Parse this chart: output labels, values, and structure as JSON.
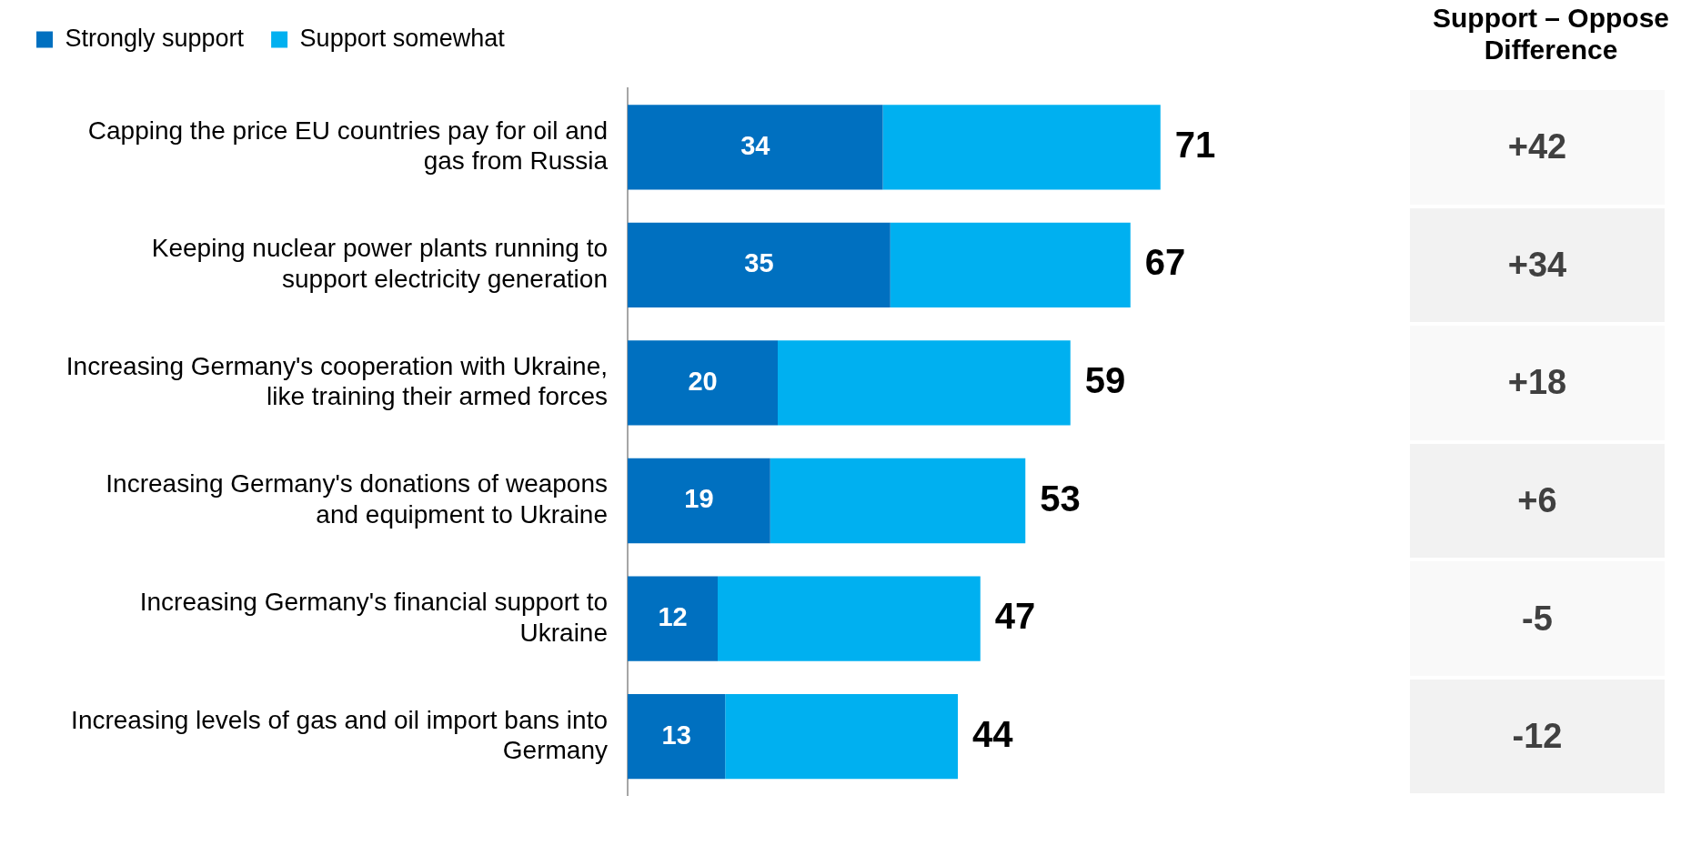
{
  "chart_data": {
    "type": "bar",
    "orientation": "horizontal",
    "stacked": true,
    "categories": [
      "Capping the price EU countries pay for oil and gas from Russia",
      "Keeping nuclear power plants running to support electricity generation",
      "Increasing Germany's cooperation with Ukraine, like training their armed forces",
      "Increasing Germany's donations of weapons and equipment to Ukraine",
      "Increasing Germany's financial support to Ukraine",
      "Increasing levels of gas and oil import bans into Germany"
    ],
    "series": [
      {
        "name": "Strongly support",
        "color": "#0070c0",
        "values": [
          34,
          35,
          20,
          19,
          12,
          13
        ],
        "value_labels": [
          "34",
          "35",
          "20",
          "19",
          "12",
          "13"
        ]
      },
      {
        "name": "Support somewhat",
        "color": "#00b0f0",
        "values": [
          37,
          32,
          39,
          34,
          35,
          31
        ]
      }
    ],
    "totals": [
      "71",
      "67",
      "59",
      "53",
      "47",
      "44"
    ],
    "legend": "top left",
    "annotations": [
      "Support – Oppose Difference",
      "+42",
      "+34",
      "+18",
      "+6",
      "-5",
      "-12"
    ]
  }
}
